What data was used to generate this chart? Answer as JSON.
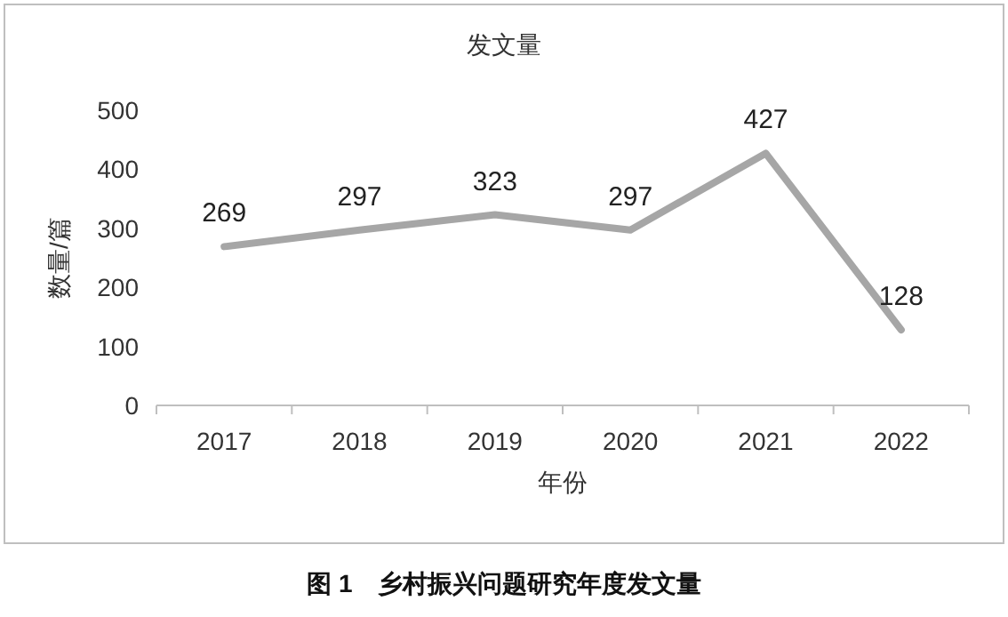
{
  "chart_data": {
    "type": "line",
    "title": "发文量",
    "xlabel": "年份",
    "ylabel": "数量/篇",
    "categories": [
      "2017",
      "2018",
      "2019",
      "2020",
      "2021",
      "2022"
    ],
    "series": [
      {
        "color": "#a6a6a6",
        "values": [
          269,
          297,
          323,
          297,
          427,
          128
        ]
      }
    ],
    "data_labels": true,
    "ylim": [
      0,
      500
    ],
    "yticks": [
      0,
      100,
      200,
      300,
      400,
      500
    ],
    "grid": false,
    "marker": "none",
    "line_style": "solid",
    "annotations": [
      "图 1　乡村振兴问题研究年度发文量"
    ]
  }
}
